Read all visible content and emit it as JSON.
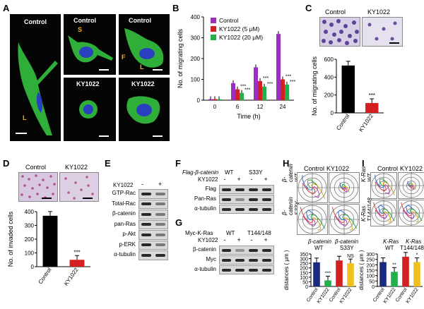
{
  "panels": {
    "A": {
      "letter": "A",
      "control": "Control",
      "drug": "KY1022",
      "marks": [
        "S",
        "F",
        "L",
        "L"
      ]
    },
    "B": {
      "letter": "B"
    },
    "C": {
      "letter": "C",
      "control": "Control",
      "drug": "KY1022"
    },
    "D": {
      "letter": "D",
      "control": "Control",
      "drug": "KY1022"
    },
    "E": {
      "letter": "E",
      "ky": "KY1022",
      "minus": "-",
      "plus": "+",
      "rows": [
        "GTP-Rac",
        "Total-Rac",
        "β-catenin",
        "pan-Ras",
        "p-Akt",
        "p-ERK",
        "α-tubulin"
      ]
    },
    "F": {
      "letter": "F",
      "header": "Flag-β-catenin",
      "wt": "WT",
      "mut": "S33Y",
      "ky": "KY1022",
      "signs": [
        "-",
        "+",
        "-",
        "+"
      ],
      "rows": [
        "Flag",
        "Pan-Ras",
        "α-tubulin"
      ]
    },
    "G": {
      "letter": "G",
      "header": "Myc-K-Ras",
      "wt": "WT",
      "mut": "T144/148",
      "ky": "KY1022",
      "signs": [
        "-",
        "+",
        "-",
        "+"
      ],
      "rows": [
        "β-catenin",
        "Myc",
        "α-tubulin"
      ]
    },
    "H": {
      "letter": "H",
      "control": "Control",
      "drug": "KY1022",
      "row1": "β-catenin WT",
      "row2": "β-catenin S33Y",
      "grp1": "β-catenin",
      "grp1sub": "WT",
      "grp2": "β-catenin",
      "grp2sub": "S33Y"
    },
    "I": {
      "letter": "I",
      "control": "Control",
      "drug": "KY1022",
      "row1": "K-Ras WT",
      "row2": "K-Ras T144/148",
      "grp1": "K-Ras",
      "grp1sub": "WT",
      "grp2": "K-Ras",
      "grp2sub": "T144/148"
    }
  },
  "chart_data": [
    {
      "id": "B",
      "type": "bar",
      "categories": [
        "0",
        "6",
        "12",
        "24"
      ],
      "series": [
        {
          "name": "Control",
          "color": "#9b30c0",
          "values": [
            5,
            82,
            158,
            318
          ]
        },
        {
          "name": "KY1022 (5 μM)",
          "color": "#d42020",
          "values": [
            5,
            52,
            92,
            100
          ]
        },
        {
          "name": "KY1022 (20 μM)",
          "color": "#22b04a",
          "values": [
            5,
            35,
            65,
            75
          ]
        }
      ],
      "xlabel": "Time (h)",
      "ylabel": "No. of migrating cells",
      "ylim": [
        0,
        400
      ],
      "yticks": [
        0,
        100,
        200,
        300,
        400
      ],
      "annotations": [
        "***",
        "***",
        "***",
        "***",
        "***",
        "***"
      ]
    },
    {
      "id": "C",
      "type": "bar",
      "categories": [
        "Control",
        "KY1022"
      ],
      "values": [
        530,
        110
      ],
      "colors": [
        "#000000",
        "#d42020"
      ],
      "ylabel": "No. of migrating cells",
      "ylim": [
        0,
        600
      ],
      "yticks": [
        0,
        200,
        400,
        600
      ],
      "annotations": [
        "***"
      ]
    },
    {
      "id": "D",
      "type": "bar",
      "categories": [
        "Control",
        "KY1022"
      ],
      "values": [
        370,
        50
      ],
      "colors": [
        "#000000",
        "#d42020"
      ],
      "ylabel": "No. of invaded cells",
      "ylim": [
        0,
        400
      ],
      "yticks": [
        0,
        100,
        200,
        300,
        400
      ],
      "annotations": [
        "***"
      ]
    },
    {
      "id": "H",
      "type": "bar",
      "categories": [
        "Control",
        "KY1022",
        "Control",
        "KY1022"
      ],
      "values": [
        260,
        65,
        280,
        250
      ],
      "colors": [
        "#1a2a80",
        "#22b04a",
        "#d42020",
        "#f0c020"
      ],
      "ylabel": "distances ( μm )",
      "ylim": [
        0,
        350
      ],
      "yticks": [
        0,
        50,
        100,
        150,
        200,
        250,
        300,
        350
      ],
      "annotations": [
        "***",
        "NS"
      ]
    },
    {
      "id": "I",
      "type": "bar",
      "categories": [
        "Control",
        "KY1022",
        "Control",
        "KY1022"
      ],
      "values": [
        225,
        135,
        275,
        225
      ],
      "colors": [
        "#1a2a80",
        "#22b04a",
        "#d42020",
        "#f0c020"
      ],
      "ylabel": "distances ( μm )",
      "ylim": [
        0,
        300
      ],
      "yticks": [
        0,
        50,
        100,
        150,
        200,
        250,
        300
      ],
      "annotations": [
        "**",
        "*"
      ]
    }
  ]
}
